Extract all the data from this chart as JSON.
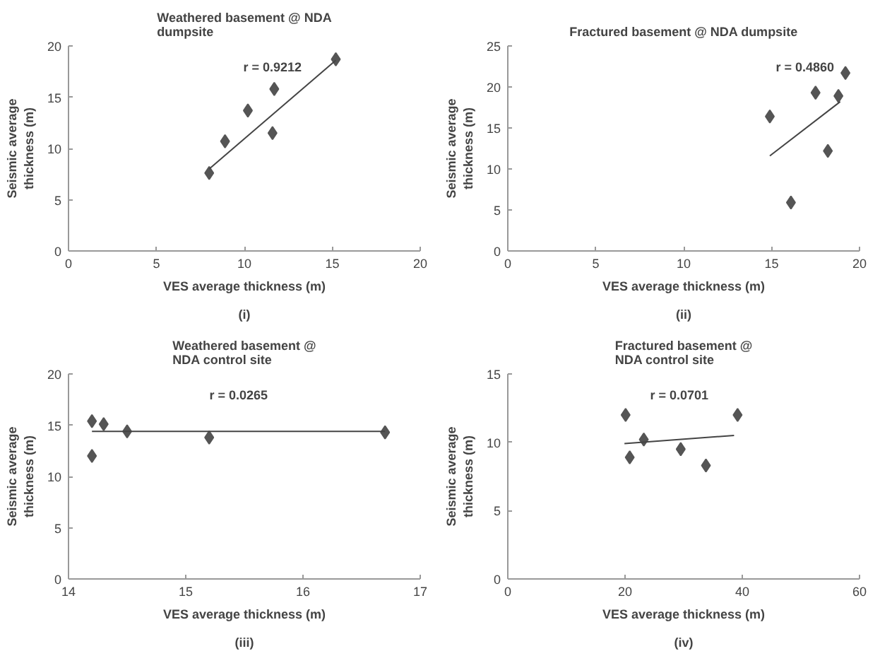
{
  "chart_data": [
    {
      "type": "scatter",
      "title": "Weathered basement @ NDA\ndumpsite",
      "xlabel": "VES average thickness (m)",
      "ylabel": "Seismic average\nthickness (m)",
      "xlim": [
        0,
        20
      ],
      "xticks": [
        0,
        5,
        10,
        15,
        20
      ],
      "ylim": [
        0,
        20
      ],
      "yticks": [
        0,
        5,
        10,
        15,
        20
      ],
      "grid": false,
      "series": [
        {
          "color": "#555555",
          "marker": "diamond",
          "x": [
            8.0,
            8.9,
            10.2,
            11.6,
            11.7,
            15.2
          ],
          "values": [
            7.6,
            10.7,
            13.7,
            11.5,
            15.8,
            18.7
          ]
        },
        {
          "type": "line",
          "marker": "none",
          "color": "#444444",
          "x": [
            8.0,
            15.2
          ],
          "values": [
            8.0,
            18.6
          ]
        }
      ],
      "annotations": [
        "r = 0.9212",
        "(i)"
      ]
    },
    {
      "type": "scatter",
      "title": "Fractured basement @ NDA dumpsite",
      "xlabel": "VES average thickness (m)",
      "ylabel": "Seismic average\nthickness (m)",
      "xlim": [
        0,
        20
      ],
      "xticks": [
        0,
        5,
        10,
        15,
        20
      ],
      "ylim": [
        0,
        25
      ],
      "yticks": [
        0,
        5,
        10,
        15,
        20,
        25
      ],
      "grid": false,
      "series": [
        {
          "color": "#555555",
          "marker": "diamond",
          "x": [
            14.9,
            16.1,
            17.5,
            18.2,
            18.8,
            19.2
          ],
          "values": [
            16.4,
            5.9,
            19.3,
            12.2,
            18.9,
            21.7
          ]
        },
        {
          "type": "line",
          "marker": "none",
          "color": "#444444",
          "x": [
            14.9,
            18.9
          ],
          "values": [
            11.6,
            18.2
          ]
        }
      ],
      "annotations": [
        "r = 0.4860",
        "(ii)"
      ]
    },
    {
      "type": "scatter",
      "title": "Weathered basement @\nNDA control site",
      "xlabel": "VES average thickness (m)",
      "ylabel": "Seismic average\nthickness (m)",
      "xlim": [
        14,
        17
      ],
      "xticks": [
        14,
        15,
        16,
        17
      ],
      "ylim": [
        0,
        20
      ],
      "yticks": [
        0,
        5,
        10,
        15,
        20
      ],
      "grid": false,
      "series": [
        {
          "color": "#555555",
          "marker": "diamond",
          "x": [
            14.2,
            14.3,
            14.2,
            14.5,
            15.2,
            16.7
          ],
          "values": [
            15.4,
            15.1,
            12.0,
            14.4,
            13.8,
            14.3
          ]
        },
        {
          "type": "line",
          "marker": "none",
          "color": "#444444",
          "x": [
            14.2,
            16.7
          ],
          "values": [
            14.4,
            14.4
          ]
        }
      ],
      "annotations": [
        "r = 0.0265",
        "(iii)"
      ]
    },
    {
      "type": "scatter",
      "title": "Fractured basement @\nNDA control site",
      "xlabel": "VES average thickness (m)",
      "ylabel": "Seismic average\nthickness (m)",
      "xlim": [
        0,
        60
      ],
      "xticks": [
        0,
        20,
        40,
        60
      ],
      "ylim": [
        0,
        15
      ],
      "yticks": [
        0,
        5,
        10,
        15
      ],
      "grid": false,
      "series": [
        {
          "color": "#555555",
          "marker": "diamond",
          "x": [
            20.1,
            20.8,
            23.2,
            29.5,
            33.8,
            39.2
          ],
          "values": [
            12.0,
            8.9,
            10.2,
            9.5,
            8.3,
            12.0
          ]
        },
        {
          "type": "line",
          "marker": "none",
          "color": "#444444",
          "x": [
            19.9,
            38.6
          ],
          "values": [
            9.9,
            10.5
          ]
        }
      ],
      "annotations": [
        "r = 0.0701",
        "(iv)"
      ]
    }
  ]
}
